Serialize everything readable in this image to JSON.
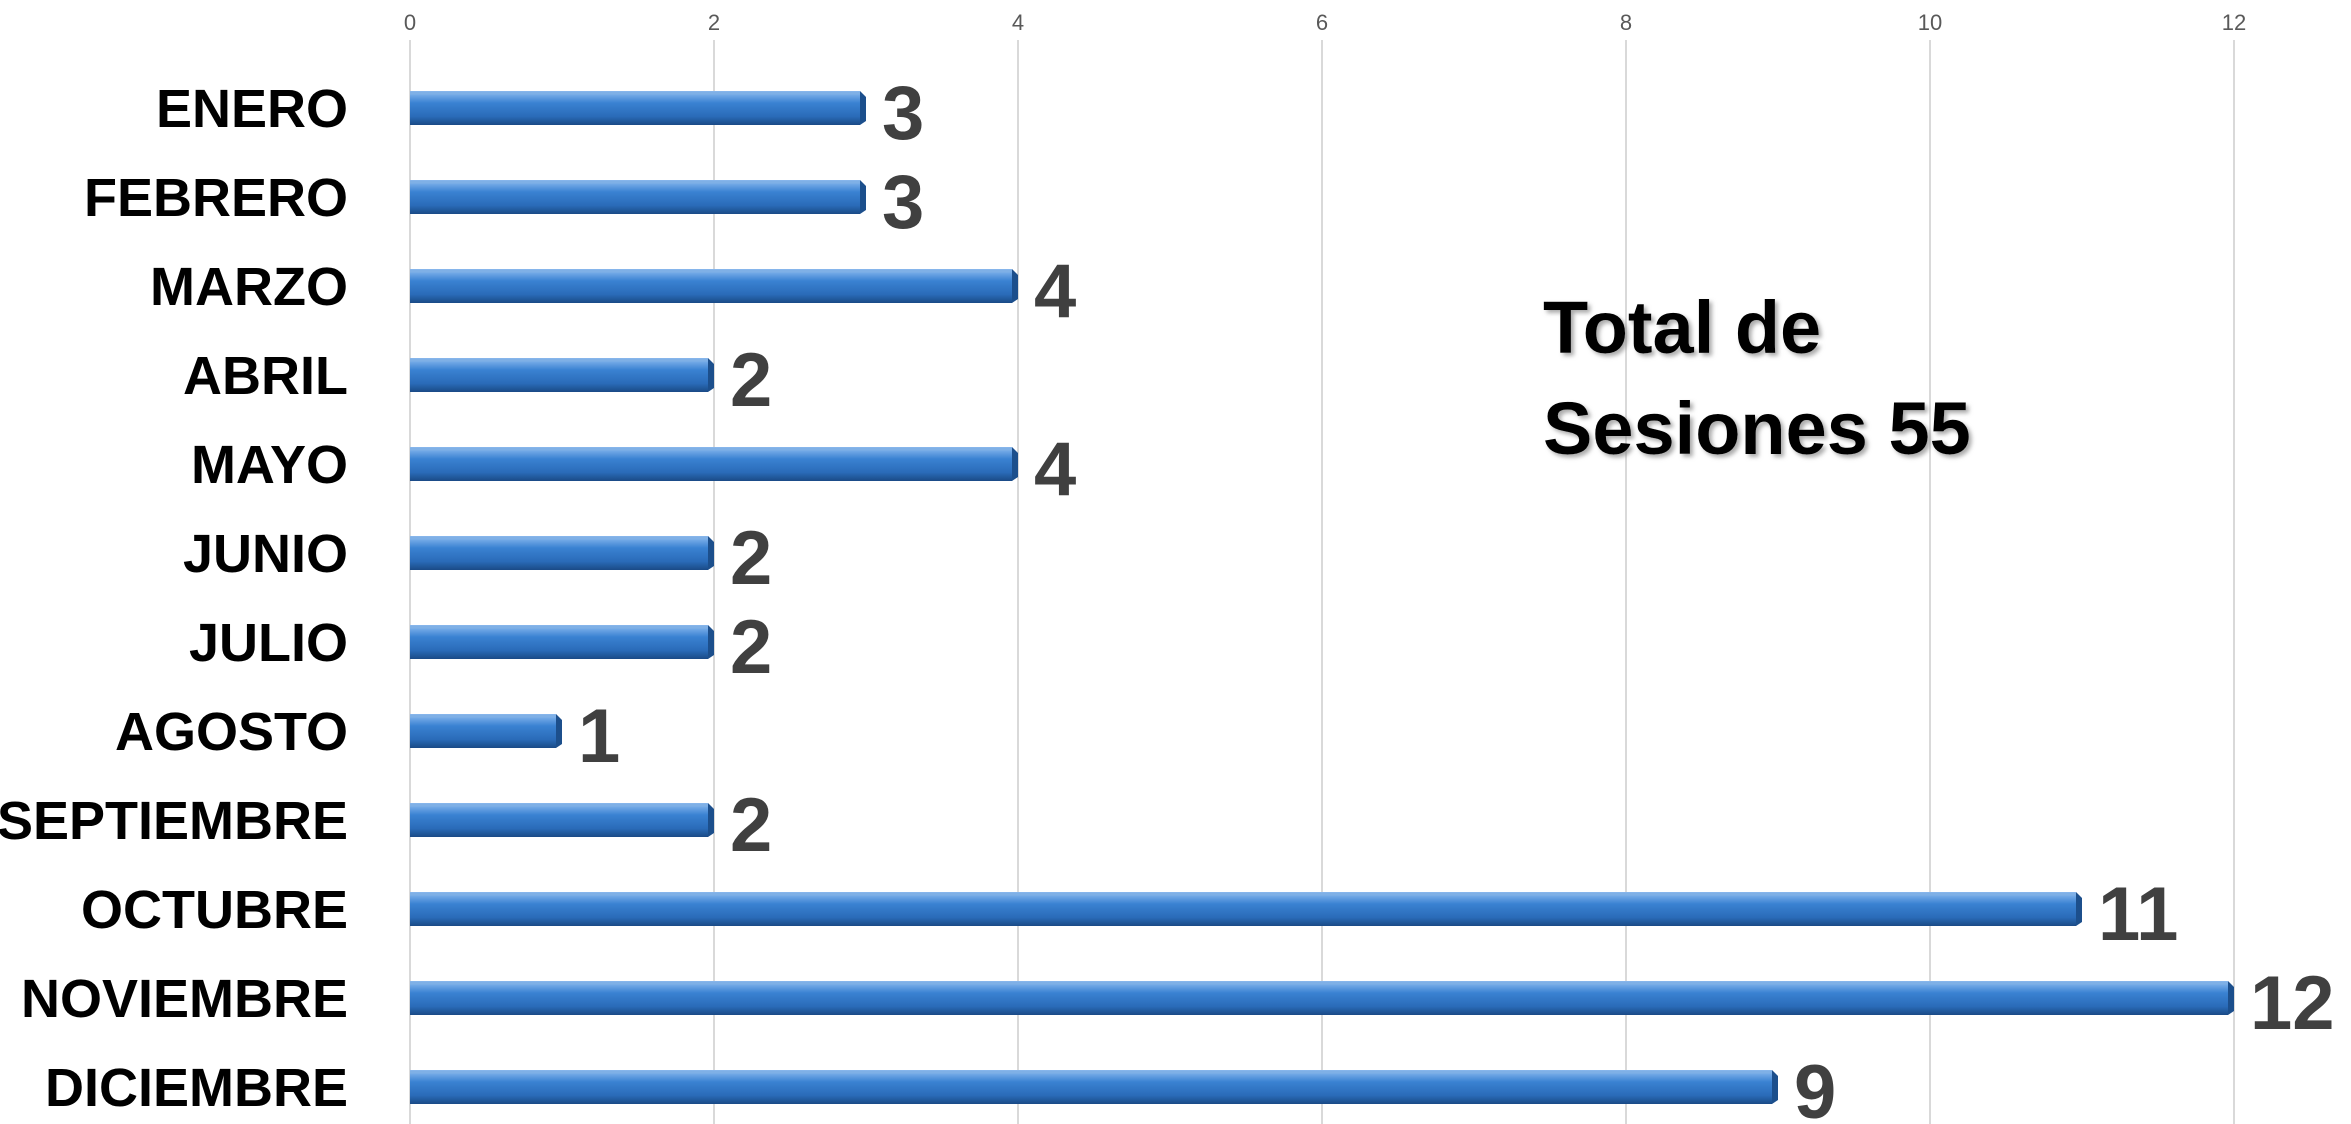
{
  "chart_data": {
    "type": "bar",
    "orientation": "horizontal",
    "categories": [
      "ENERO",
      "FEBRERO",
      "MARZO",
      "ABRIL",
      "MAYO",
      "JUNIO",
      "JULIO",
      "AGOSTO",
      "SEPTIEMBRE",
      "OCTUBRE",
      "NOVIEMBRE",
      "DICIEMBRE"
    ],
    "values": [
      3,
      3,
      4,
      2,
      4,
      2,
      2,
      1,
      2,
      11,
      12,
      9
    ],
    "xlim": [
      0,
      12
    ],
    "xticks": [
      "0",
      "2",
      "4",
      "6",
      "8",
      "10",
      "12"
    ],
    "grid": true,
    "data_labels": true,
    "annotation": [
      "Total de",
      "Sesiones 55"
    ],
    "colors": {
      "bar": "#2e75c6",
      "bar_dark": "#1c4f8c",
      "bar_light": "#7fb0e6"
    }
  }
}
